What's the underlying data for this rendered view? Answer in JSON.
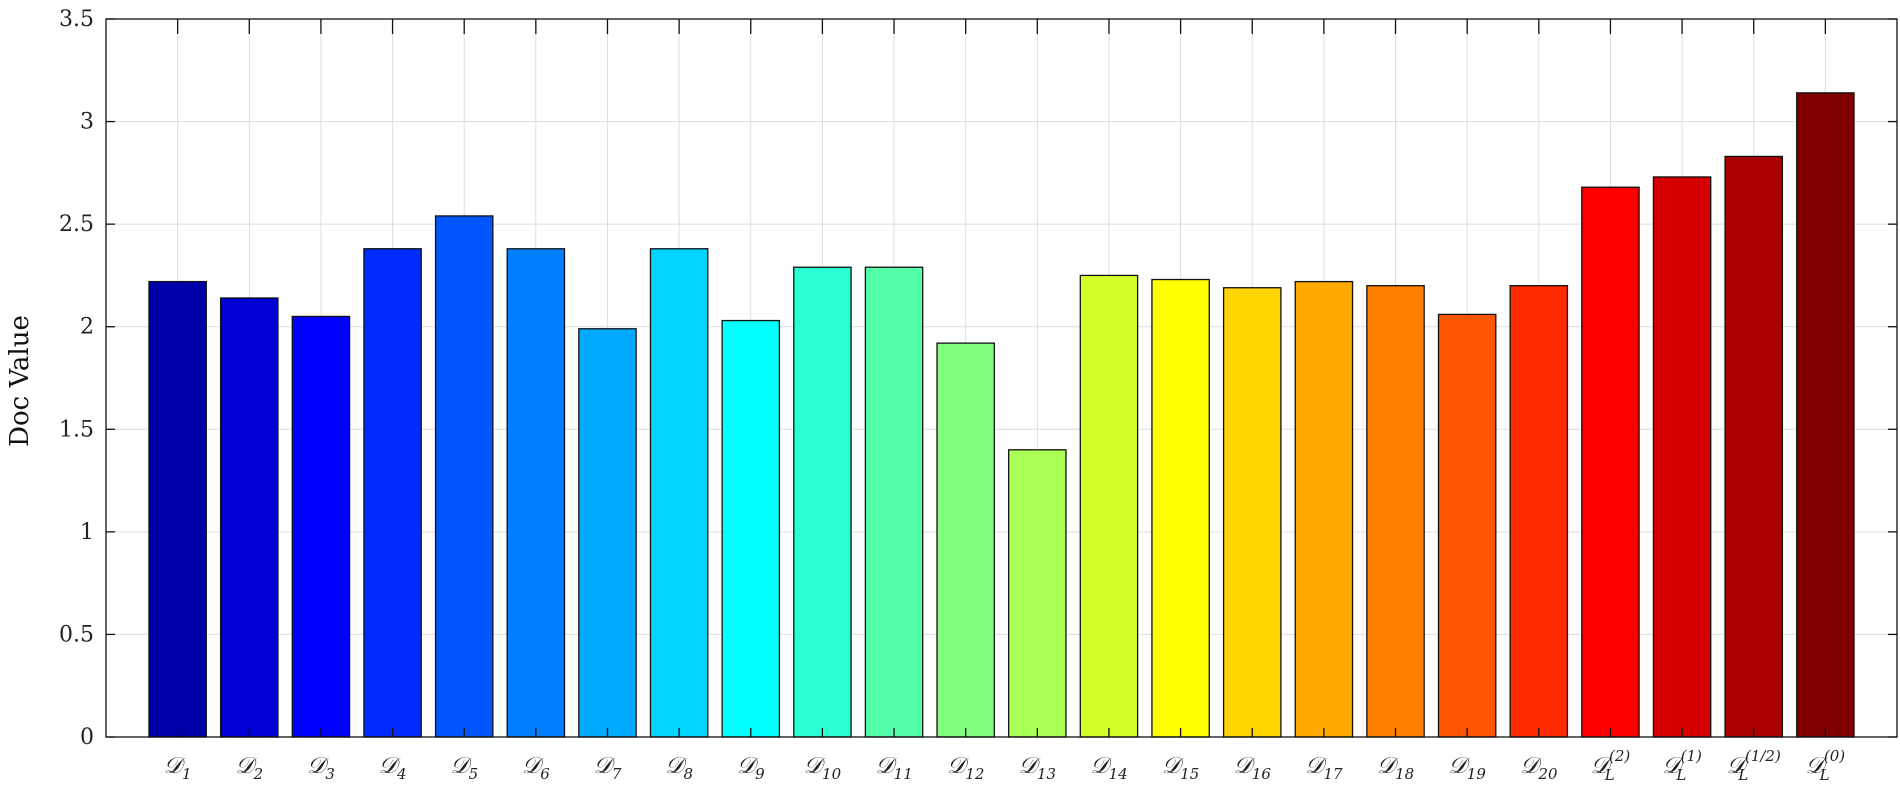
{
  "chart_data": {
    "type": "bar",
    "categories": [
      "𝒟1",
      "𝒟2",
      "𝒟3",
      "𝒟4",
      "𝒟5",
      "𝒟6",
      "𝒟7",
      "𝒟8",
      "𝒟9",
      "𝒟10",
      "𝒟11",
      "𝒟12",
      "𝒟13",
      "𝒟14",
      "𝒟15",
      "𝒟16",
      "𝒟17",
      "𝒟18",
      "𝒟19",
      "𝒟20",
      "𝒟L(2)",
      "𝒟L(1)",
      "𝒟L(1/2)",
      "𝒟L(0)"
    ],
    "category_parts": [
      {
        "base": "𝒟",
        "sub": "1",
        "sup": ""
      },
      {
        "base": "𝒟",
        "sub": "2",
        "sup": ""
      },
      {
        "base": "𝒟",
        "sub": "3",
        "sup": ""
      },
      {
        "base": "𝒟",
        "sub": "4",
        "sup": ""
      },
      {
        "base": "𝒟",
        "sub": "5",
        "sup": ""
      },
      {
        "base": "𝒟",
        "sub": "6",
        "sup": ""
      },
      {
        "base": "𝒟",
        "sub": "7",
        "sup": ""
      },
      {
        "base": "𝒟",
        "sub": "8",
        "sup": ""
      },
      {
        "base": "𝒟",
        "sub": "9",
        "sup": ""
      },
      {
        "base": "𝒟",
        "sub": "10",
        "sup": ""
      },
      {
        "base": "𝒟",
        "sub": "11",
        "sup": ""
      },
      {
        "base": "𝒟",
        "sub": "12",
        "sup": ""
      },
      {
        "base": "𝒟",
        "sub": "13",
        "sup": ""
      },
      {
        "base": "𝒟",
        "sub": "14",
        "sup": ""
      },
      {
        "base": "𝒟",
        "sub": "15",
        "sup": ""
      },
      {
        "base": "𝒟",
        "sub": "16",
        "sup": ""
      },
      {
        "base": "𝒟",
        "sub": "17",
        "sup": ""
      },
      {
        "base": "𝒟",
        "sub": "18",
        "sup": ""
      },
      {
        "base": "𝒟",
        "sub": "19",
        "sup": ""
      },
      {
        "base": "𝒟",
        "sub": "20",
        "sup": ""
      },
      {
        "base": "𝒟",
        "sub": "L",
        "sup": "(2)"
      },
      {
        "base": "𝒟",
        "sub": "L",
        "sup": "(1)"
      },
      {
        "base": "𝒟",
        "sub": "L",
        "sup": "(1/2)"
      },
      {
        "base": "𝒟",
        "sub": "L",
        "sup": "(0)"
      }
    ],
    "values": [
      2.22,
      2.14,
      2.05,
      2.38,
      2.54,
      2.38,
      1.99,
      2.38,
      2.03,
      2.29,
      2.29,
      1.92,
      1.4,
      2.25,
      2.23,
      2.19,
      2.22,
      2.2,
      2.06,
      2.2,
      2.68,
      2.73,
      2.83,
      3.14
    ],
    "colors": [
      "#0000aa",
      "#0000d4",
      "#0000ff",
      "#002bff",
      "#0055ff",
      "#0080ff",
      "#00aaff",
      "#00d4ff",
      "#00ffff",
      "#2affd4",
      "#55ffaa",
      "#80ff80",
      "#aaff55",
      "#d4ff2a",
      "#ffff00",
      "#ffd400",
      "#ffaa00",
      "#ff8000",
      "#ff5500",
      "#ff2a00",
      "#ff0000",
      "#d40000",
      "#aa0000",
      "#800000"
    ],
    "title": "",
    "xlabel": "",
    "ylabel": "Doc Value",
    "ylim": [
      0,
      3.5
    ],
    "yticks": [
      0,
      0.5,
      1,
      1.5,
      2,
      2.5,
      3,
      3.5
    ],
    "ytick_labels": [
      "0",
      "0.5",
      "1",
      "1.5",
      "2",
      "2.5",
      "3",
      "3.5"
    ],
    "grid": true,
    "legend": "none"
  }
}
